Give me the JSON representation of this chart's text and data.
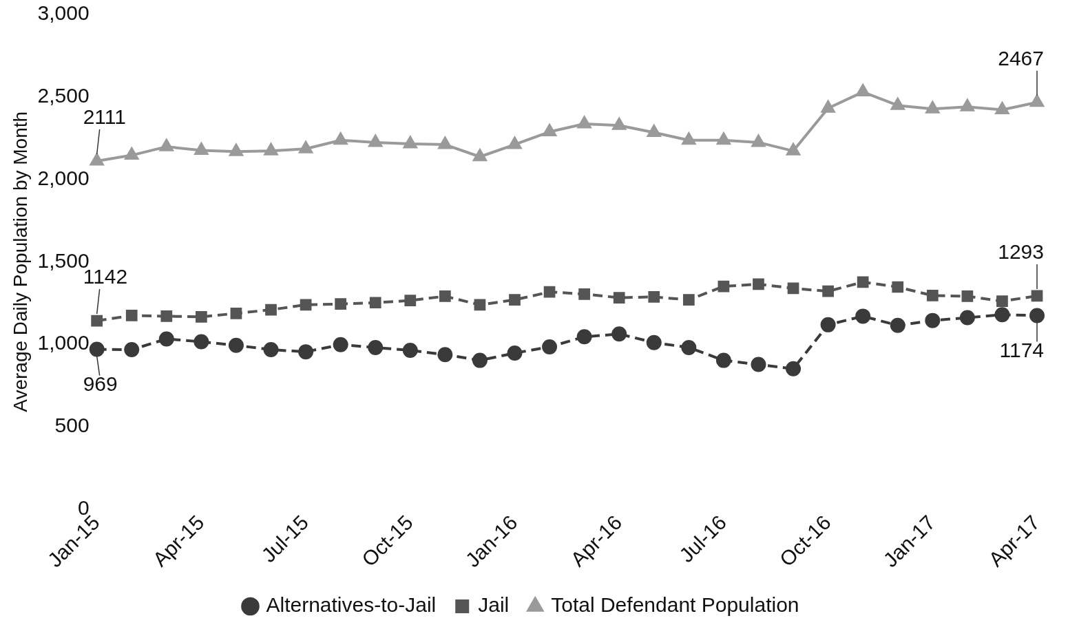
{
  "chart_data": {
    "type": "line",
    "ylabel": "Average Daily Population by Month",
    "categories": [
      "Jan-15",
      null,
      null,
      "Apr-15",
      null,
      null,
      "Jul-15",
      null,
      null,
      "Oct-15",
      null,
      null,
      "Jan-16",
      null,
      null,
      "Apr-16",
      null,
      null,
      "Jul-16",
      null,
      null,
      "Oct-16",
      null,
      null,
      "Jan-17",
      null,
      null,
      "Apr-17"
    ],
    "series": [
      {
        "name": "Alternatives-to-Jail",
        "color": "#3a3a3a",
        "marker": "circle",
        "line_style": "dashed",
        "values": [
          969,
          967,
          1032,
          1015,
          993,
          967,
          954,
          997,
          980,
          963,
          937,
          902,
          946,
          984,
          1045,
          1062,
          1010,
          980,
          902,
          877,
          851,
          1118,
          1170,
          1114,
          1144,
          1161,
          1179,
          1174
        ],
        "value_labels": [
          "969",
          null,
          null,
          null,
          null,
          null,
          null,
          null,
          null,
          null,
          null,
          null,
          null,
          null,
          null,
          null,
          null,
          null,
          null,
          null,
          null,
          null,
          null,
          null,
          null,
          null,
          null,
          "1174"
        ]
      },
      {
        "name": "Jail",
        "color": "#555555",
        "marker": "square",
        "line_style": "dashed",
        "values": [
          1142,
          1174,
          1170,
          1166,
          1187,
          1209,
          1239,
          1244,
          1252,
          1265,
          1291,
          1239,
          1269,
          1317,
          1304,
          1282,
          1287,
          1269,
          1351,
          1364,
          1339,
          1321,
          1377,
          1347,
          1295,
          1291,
          1261,
          1293
        ],
        "value_labels": [
          "1142",
          null,
          null,
          null,
          null,
          null,
          null,
          null,
          null,
          null,
          null,
          null,
          null,
          null,
          null,
          null,
          null,
          null,
          null,
          null,
          null,
          null,
          null,
          null,
          null,
          null,
          null,
          "1293"
        ]
      },
      {
        "name": "Total Defendant Population",
        "color": "#9a9a9a",
        "marker": "triangle",
        "line_style": "solid",
        "values": [
          2111,
          2146,
          2198,
          2176,
          2168,
          2172,
          2185,
          2237,
          2224,
          2215,
          2211,
          2137,
          2211,
          2288,
          2336,
          2327,
          2284,
          2237,
          2237,
          2224,
          2172,
          2431,
          2530,
          2448,
          2427,
          2440,
          2422,
          2467
        ],
        "value_labels": [
          "2111",
          null,
          null,
          null,
          null,
          null,
          null,
          null,
          null,
          null,
          null,
          null,
          null,
          null,
          null,
          null,
          null,
          null,
          null,
          null,
          null,
          null,
          null,
          null,
          null,
          null,
          null,
          "2467"
        ]
      }
    ],
    "ylim": [
      0,
      3000
    ],
    "yticks": [
      0,
      {
        "value": 500,
        "label": "500"
      },
      {
        "value": 1000,
        "label": "1,000"
      },
      {
        "value": 1500,
        "label": "1,500"
      },
      {
        "value": 2000,
        "label": "2,000"
      },
      {
        "value": 2500,
        "label": "2,500"
      },
      {
        "value": 3000,
        "label": "3,000"
      }
    ],
    "grid": false,
    "legend": "bottom"
  }
}
